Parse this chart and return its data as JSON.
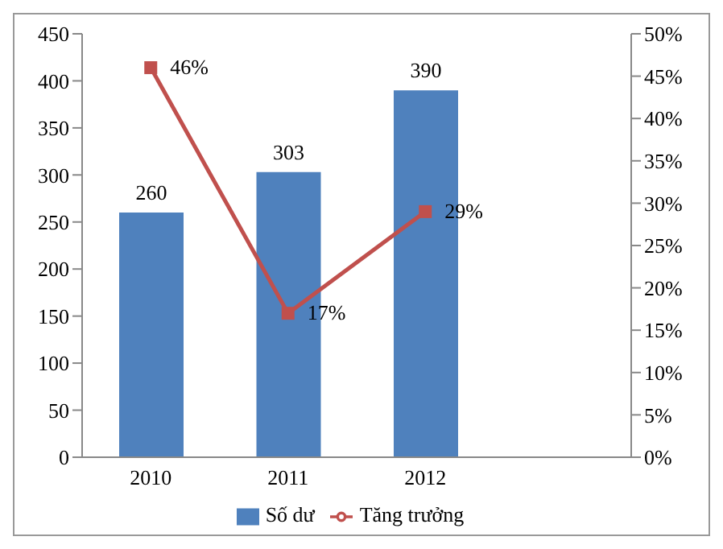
{
  "chart_data": {
    "type": "bar",
    "categories": [
      "2010",
      "2011",
      "2012",
      null
    ],
    "series": [
      {
        "name": "Số dư",
        "color": "#4f81bd",
        "values": [
          260,
          303,
          390,
          null
        ],
        "value_labels": [
          "260",
          "303",
          "390",
          null
        ]
      },
      {
        "name": "Tăng trưởng",
        "type": "line",
        "axis": "y2",
        "color": "#c0504d",
        "values": [
          46,
          17,
          29,
          null
        ],
        "value_labels": [
          "46%",
          "17%",
          "29%",
          null
        ]
      }
    ],
    "ylim": [
      0,
      450
    ],
    "yticks": [
      0,
      50,
      100,
      150,
      200,
      250,
      300,
      350,
      400,
      450
    ],
    "y2lim": [
      0,
      50
    ],
    "y2ticks": [
      {
        "value": 0,
        "label": "0%"
      },
      {
        "value": 5,
        "label": "5%"
      },
      {
        "value": 10,
        "label": "10%"
      },
      {
        "value": 15,
        "label": "15%"
      },
      {
        "value": 20,
        "label": "20%"
      },
      {
        "value": 25,
        "label": "25%"
      },
      {
        "value": 30,
        "label": "30%"
      },
      {
        "value": 35,
        "label": "35%"
      },
      {
        "value": 40,
        "label": "40%"
      },
      {
        "value": 45,
        "label": "45%"
      },
      {
        "value": 50,
        "label": "50%"
      }
    ],
    "legend": "bottom",
    "marker": "square",
    "line_style": "solid",
    "grid": false
  }
}
